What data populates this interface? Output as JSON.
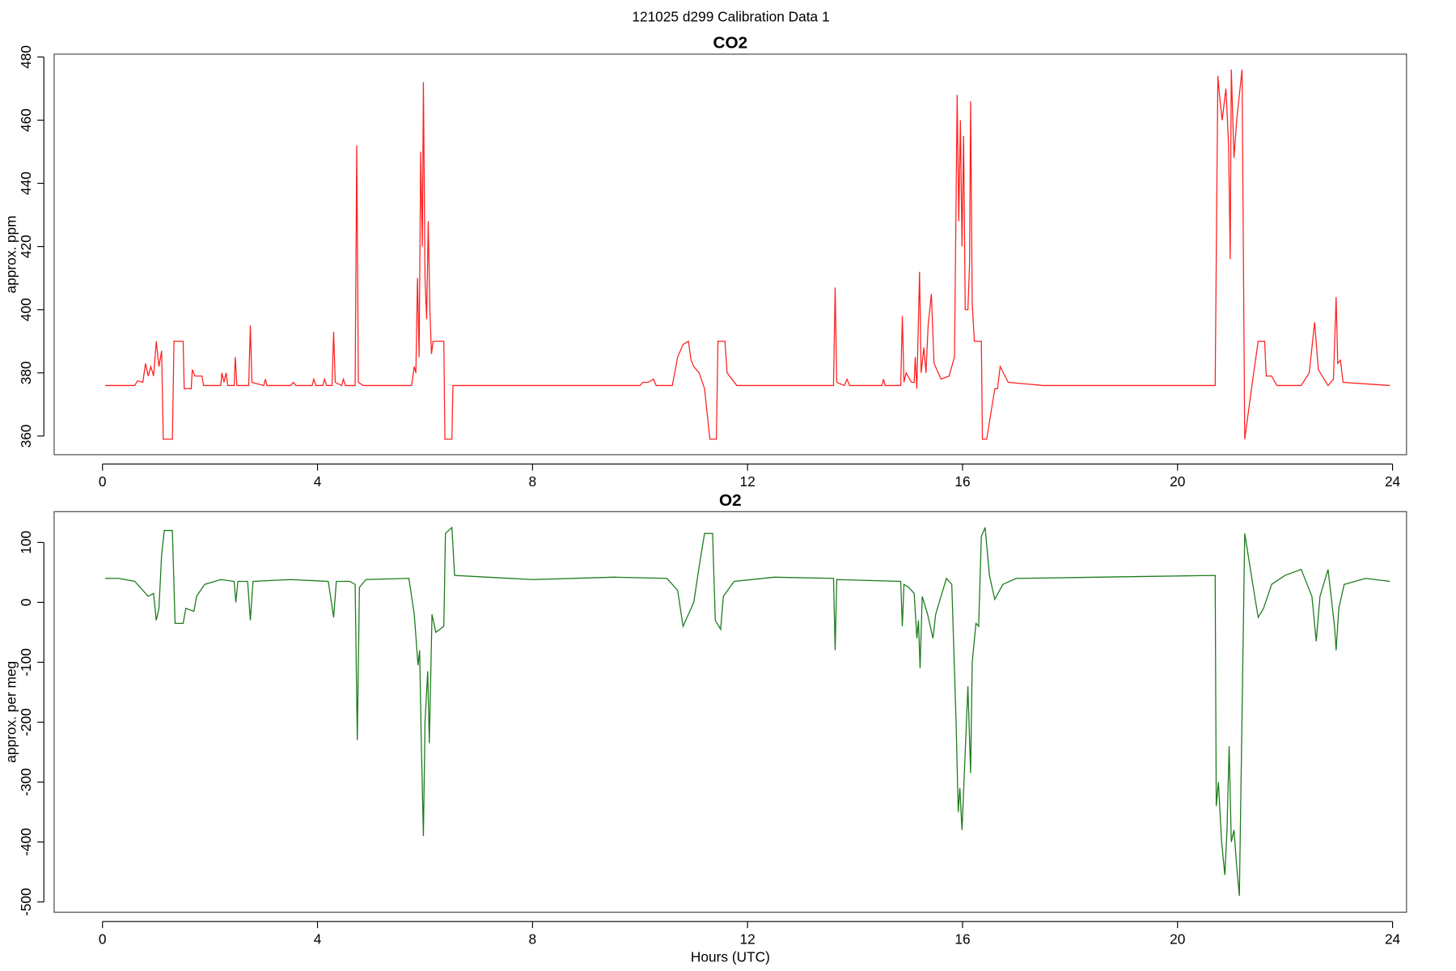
{
  "title": "121025   d299   Calibration Data 1",
  "chart_data": [
    {
      "type": "line",
      "title": "CO2",
      "ylabel": "approx. ppm",
      "xlim": [
        -0.9,
        24.26
      ],
      "xticks": [
        0,
        4,
        8,
        12,
        16,
        20,
        24
      ],
      "ylim": [
        354.1,
        480.9
      ],
      "yticks": [
        360,
        380,
        400,
        420,
        440,
        460,
        480
      ],
      "x": [
        0.05,
        0.6,
        0.65,
        0.75,
        0.8,
        0.85,
        0.9,
        0.95,
        1.0,
        1.05,
        1.1,
        1.13,
        1.3,
        1.33,
        1.5,
        1.52,
        1.65,
        1.67,
        1.72,
        1.85,
        1.88,
        2.2,
        2.22,
        2.26,
        2.3,
        2.33,
        2.45,
        2.47,
        2.5,
        2.72,
        2.75,
        2.78,
        3.0,
        3.03,
        3.06,
        3.5,
        3.55,
        3.6,
        3.9,
        3.93,
        3.97,
        4.1,
        4.13,
        4.17,
        4.27,
        4.3,
        4.33,
        4.45,
        4.48,
        4.52,
        4.7,
        4.73,
        4.76,
        4.85,
        5.75,
        5.8,
        5.83,
        5.86,
        5.89,
        5.92,
        5.95,
        5.97,
        6.0,
        6.03,
        6.06,
        6.09,
        6.12,
        6.15,
        6.35,
        6.37,
        6.5,
        6.52,
        9.0,
        10.0,
        10.05,
        10.15,
        10.25,
        10.3,
        10.6,
        10.7,
        10.8,
        10.9,
        10.95,
        11.0,
        11.1,
        11.2,
        11.3,
        11.42,
        11.45,
        11.58,
        11.62,
        11.8,
        13.6,
        13.63,
        13.66,
        13.8,
        13.85,
        13.9,
        14.5,
        14.53,
        14.56,
        14.85,
        14.88,
        14.91,
        14.95,
        15.05,
        15.1,
        15.12,
        15.15,
        15.2,
        15.23,
        15.28,
        15.32,
        15.36,
        15.42,
        15.47,
        15.6,
        15.75,
        15.85,
        15.9,
        15.93,
        15.96,
        15.99,
        16.02,
        16.05,
        16.1,
        16.13,
        16.15,
        16.18,
        16.22,
        16.35,
        16.37,
        16.45,
        16.6,
        16.65,
        16.7,
        16.85,
        17.5,
        20.7,
        20.72,
        20.75,
        20.78,
        20.83,
        20.9,
        20.95,
        20.98,
        21.0,
        21.05,
        21.1,
        21.2,
        21.25,
        21.4,
        21.5,
        21.62,
        21.65,
        21.75,
        21.85,
        22.3,
        22.45,
        22.55,
        22.62,
        22.8,
        22.9,
        22.95,
        22.98,
        23.03,
        23.08,
        23.95
      ],
      "series": [
        {
          "color": "#ff2020",
          "values": [
            376,
            376,
            377.5,
            377,
            383,
            379,
            382,
            379,
            390,
            382,
            387,
            359,
            359,
            390,
            390,
            375,
            375,
            381,
            379,
            379,
            376,
            376,
            380,
            377,
            380,
            376,
            376,
            385,
            376,
            376,
            395,
            377,
            376,
            378,
            376,
            376,
            377,
            376,
            376,
            378,
            376,
            376,
            378,
            376,
            376,
            393,
            377,
            376,
            378,
            376,
            376,
            452,
            377,
            376,
            376,
            382,
            380,
            410,
            385,
            450,
            420,
            472,
            410,
            397,
            428,
            400,
            386,
            390,
            390,
            359,
            359,
            376,
            376,
            376,
            377,
            377,
            378,
            376,
            376,
            385,
            389,
            390,
            384,
            382,
            380,
            375,
            359,
            359,
            390,
            390,
            380,
            376,
            376,
            407,
            377,
            376,
            378,
            376,
            376,
            378,
            376,
            376,
            398,
            377,
            380,
            377,
            377,
            385,
            375,
            412,
            380,
            388,
            380,
            395,
            405,
            383,
            378,
            379,
            385,
            468,
            428,
            460,
            420,
            455,
            400,
            400,
            414,
            466,
            402,
            390,
            390,
            359,
            359,
            375,
            375,
            382,
            377,
            376,
            376,
            416,
            474,
            468,
            460,
            470,
            452,
            416,
            476,
            448,
            460,
            476,
            359,
            378,
            390,
            390,
            379,
            379,
            376,
            376,
            380,
            396,
            381,
            376,
            378,
            404,
            383,
            384,
            377,
            376
          ]
        }
      ]
    },
    {
      "type": "line",
      "title": "O2",
      "ylabel": "approx. per meg",
      "xlabel": "Hours (UTC)",
      "xlim": [
        -0.9,
        24.26
      ],
      "xticks": [
        0,
        4,
        8,
        12,
        16,
        20,
        24
      ],
      "ylim": [
        -517.1,
        151.4
      ],
      "yticks": [
        -500,
        -400,
        -300,
        -200,
        -100,
        0,
        100
      ],
      "x": [
        0.05,
        0.3,
        0.6,
        0.75,
        0.85,
        0.95,
        1.0,
        1.05,
        1.1,
        1.15,
        1.3,
        1.35,
        1.5,
        1.55,
        1.7,
        1.75,
        1.9,
        2.2,
        2.45,
        2.48,
        2.52,
        2.7,
        2.75,
        2.8,
        3.5,
        4.2,
        4.3,
        4.35,
        4.6,
        4.7,
        4.74,
        4.78,
        4.9,
        5.7,
        5.8,
        5.87,
        5.9,
        5.93,
        5.97,
        6.0,
        6.05,
        6.08,
        6.13,
        6.2,
        6.35,
        6.38,
        6.5,
        6.55,
        8.0,
        9.5,
        10.5,
        10.7,
        10.8,
        10.9,
        11.0,
        11.1,
        11.2,
        11.35,
        11.4,
        11.5,
        11.55,
        11.75,
        12.5,
        13.6,
        13.63,
        13.66,
        14.85,
        14.88,
        14.91,
        15.0,
        15.1,
        15.15,
        15.18,
        15.21,
        15.25,
        15.35,
        15.45,
        15.5,
        15.7,
        15.8,
        15.88,
        15.92,
        15.95,
        15.99,
        16.05,
        16.1,
        16.15,
        16.18,
        16.25,
        16.3,
        16.35,
        16.42,
        16.5,
        16.6,
        16.75,
        17.0,
        18.5,
        20.7,
        20.72,
        20.76,
        20.82,
        20.88,
        20.92,
        20.96,
        21.0,
        21.05,
        21.1,
        21.15,
        21.25,
        21.4,
        21.5,
        21.6,
        21.75,
        22.0,
        22.3,
        22.5,
        22.58,
        22.65,
        22.8,
        22.92,
        22.95,
        23.0,
        23.1,
        23.5,
        23.95
      ],
      "series": [
        {
          "color": "#1a7a1a",
          "values": [
            40,
            40,
            35,
            20,
            10,
            15,
            -30,
            -10,
            80,
            120,
            120,
            -35,
            -35,
            -10,
            -15,
            10,
            30,
            38,
            35,
            0,
            35,
            35,
            -30,
            35,
            38,
            35,
            -25,
            35,
            35,
            30,
            -230,
            25,
            38,
            40,
            -20,
            -105,
            -80,
            -230,
            -390,
            -200,
            -115,
            -235,
            -20,
            -50,
            -40,
            115,
            125,
            45,
            38,
            42,
            40,
            20,
            -40,
            -20,
            0,
            60,
            115,
            115,
            -30,
            -45,
            10,
            35,
            42,
            40,
            -80,
            38,
            35,
            -40,
            30,
            25,
            15,
            -60,
            -30,
            -110,
            10,
            -20,
            -60,
            -20,
            40,
            30,
            -200,
            -350,
            -310,
            -380,
            -250,
            -140,
            -285,
            -100,
            -35,
            -40,
            110,
            125,
            45,
            5,
            30,
            40,
            42,
            45,
            -340,
            -300,
            -400,
            -455,
            -380,
            -240,
            -400,
            -380,
            -440,
            -490,
            115,
            30,
            -25,
            -10,
            30,
            45,
            55,
            10,
            -65,
            10,
            55,
            -40,
            -80,
            -10,
            30,
            40,
            35
          ]
        }
      ]
    }
  ]
}
